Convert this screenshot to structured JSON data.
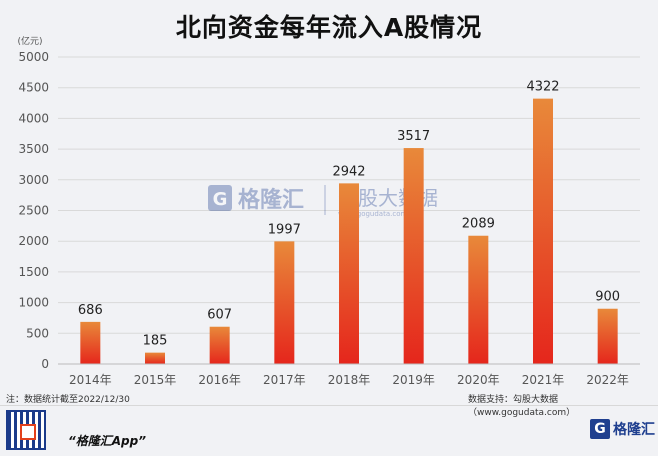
{
  "title": "北向资金每年流入A股情况",
  "unit": "(亿元)",
  "note": "注：数据统计截至2022/12/30",
  "source": "数据支持：勾股大数据（www.gogudata.com）",
  "watermark": {
    "brand": "格隆汇",
    "partner": "勾股大数据",
    "partner_url": "www.gogudata.com"
  },
  "footer": {
    "app_name": "“格隆汇App”",
    "logo_text": "格隆汇"
  },
  "colors": {
    "bar_top": "#e8893a",
    "bar_bottom": "#e5261c",
    "grid": "#d9d9d9",
    "axis_text": "#555555",
    "background": "#f1f2f5"
  },
  "chart_data": {
    "type": "bar",
    "title": "北向资金每年流入A股情况",
    "ylabel": "(亿元)",
    "xlabel": "",
    "categories": [
      "2014年",
      "2015年",
      "2016年",
      "2017年",
      "2018年",
      "2019年",
      "2020年",
      "2021年",
      "2022年"
    ],
    "values": [
      686,
      185,
      607,
      1997,
      2942,
      3517,
      2089,
      4322,
      900
    ],
    "data_labels": [
      "686",
      "185",
      "607",
      "1997",
      "2942",
      "3517",
      "2089",
      "4322",
      "900"
    ],
    "ylim": [
      0,
      5000
    ],
    "yticks": [
      0,
      500,
      1000,
      1500,
      2000,
      2500,
      3000,
      3500,
      4000,
      4500,
      5000
    ],
    "grid": true,
    "legend": "none"
  }
}
